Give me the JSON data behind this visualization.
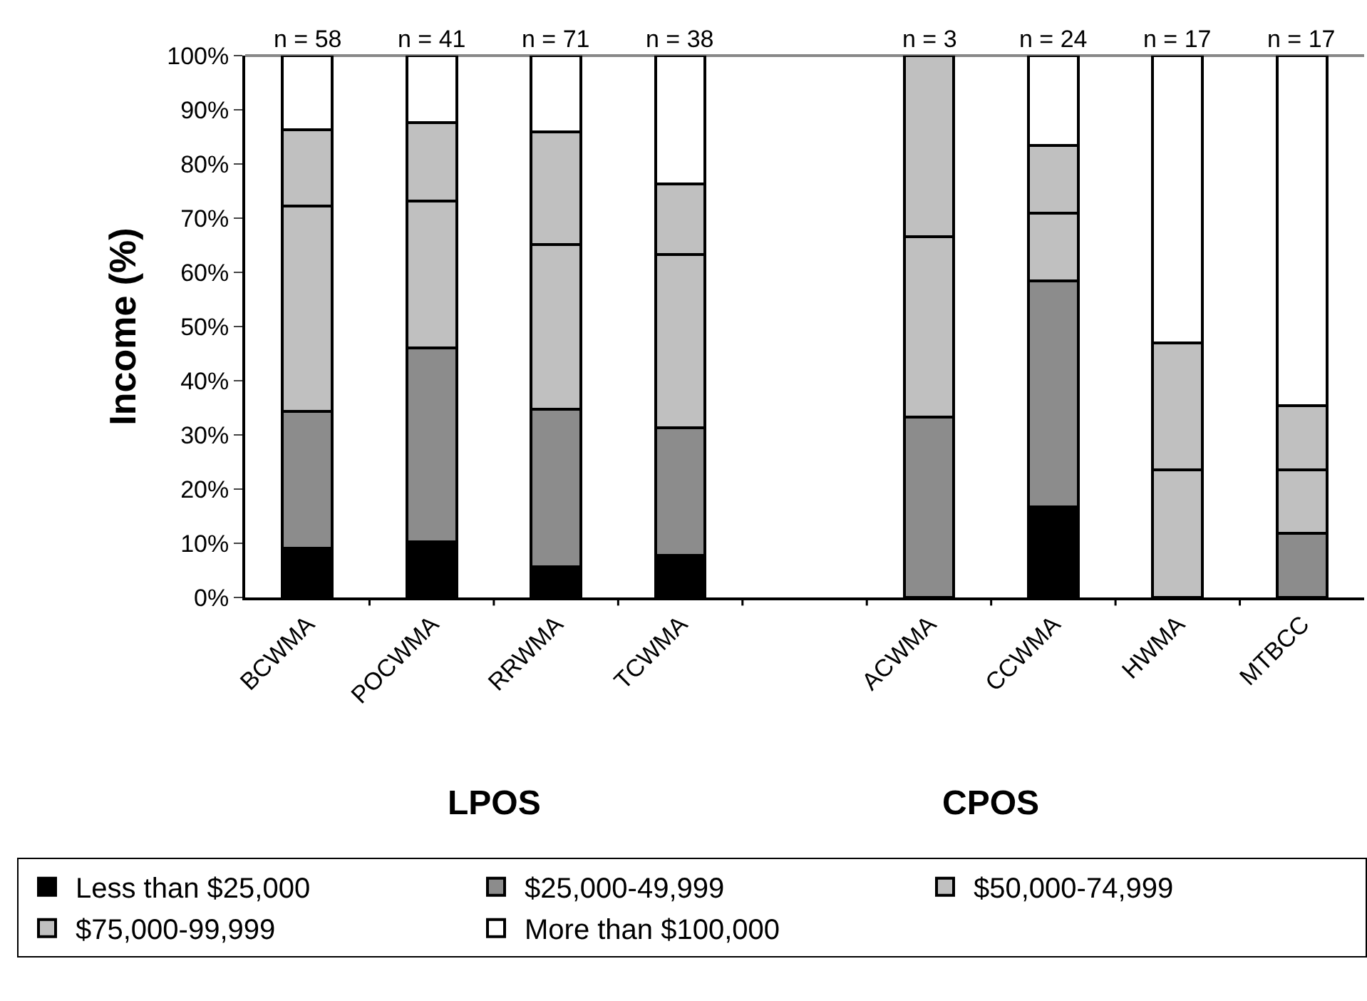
{
  "chart_data": {
    "type": "bar",
    "stacked": true,
    "ylabel": "Income (%)",
    "categories": [
      "BCWMA",
      "POCWMA",
      "RRWMA",
      "TCWMA",
      null,
      "ACWMA",
      "CCWMA",
      "HWMA",
      "MTBCC"
    ],
    "series": [
      {
        "name": "Less than $25,000",
        "color": "#000000",
        "values": [
          9.1,
          10.3,
          5.6,
          7.8,
          null,
          null,
          16.7,
          null,
          null
        ]
      },
      {
        "name": "$25,000-49,999",
        "color": "#8c8c8c",
        "values": [
          25.2,
          35.8,
          29.2,
          23.5,
          null,
          33.3,
          41.7,
          null,
          11.8
        ]
      },
      {
        "name": "$50,000-74,999",
        "color": "#c0c0c0",
        "values": [
          38.0,
          27.1,
          30.3,
          32.0,
          null,
          33.3,
          12.5,
          23.5,
          11.8
        ]
      },
      {
        "name": "$75,000-99,999",
        "color": "#c0c0c0",
        "values": [
          14.0,
          14.4,
          20.8,
          13.0,
          null,
          33.4,
          12.5,
          23.5,
          11.8
        ]
      },
      {
        "name": "More than $100,000",
        "color": "#ffffff",
        "values": [
          13.7,
          12.4,
          14.1,
          23.7,
          null,
          null,
          16.6,
          53.0,
          64.6
        ]
      }
    ],
    "ylim": [
      0,
      100
    ],
    "yticks": [
      {
        "value": 0,
        "label": "0%"
      },
      {
        "value": 10,
        "label": "10%"
      },
      {
        "value": 20,
        "label": "20%"
      },
      {
        "value": 30,
        "label": "30%"
      },
      {
        "value": 40,
        "label": "40%"
      },
      {
        "value": 50,
        "label": "50%"
      },
      {
        "value": 60,
        "label": "60%"
      },
      {
        "value": 70,
        "label": "70%"
      },
      {
        "value": 80,
        "label": "80%"
      },
      {
        "value": 90,
        "label": "90%"
      },
      {
        "value": 100,
        "label": "100%"
      }
    ],
    "grid": false,
    "legend": "bottom",
    "annotations": [
      {
        "text": "n = 58",
        "x": "BCWMA",
        "y": 100
      },
      {
        "text": "n = 41",
        "x": "POCWMA",
        "y": 100
      },
      {
        "text": "n = 71",
        "x": "RRWMA",
        "y": 100
      },
      {
        "text": "n = 38",
        "x": "TCWMA",
        "y": 100
      },
      {
        "text": "n = 3",
        "x": "ACWMA",
        "y": 100
      },
      {
        "text": "n = 24",
        "x": "CCWMA",
        "y": 100
      },
      {
        "text": "n = 17",
        "x": "HWMA",
        "y": 100
      },
      {
        "text": "n = 17",
        "x": "MTBCC",
        "y": 100
      },
      "LPOS",
      "CPOS"
    ]
  }
}
